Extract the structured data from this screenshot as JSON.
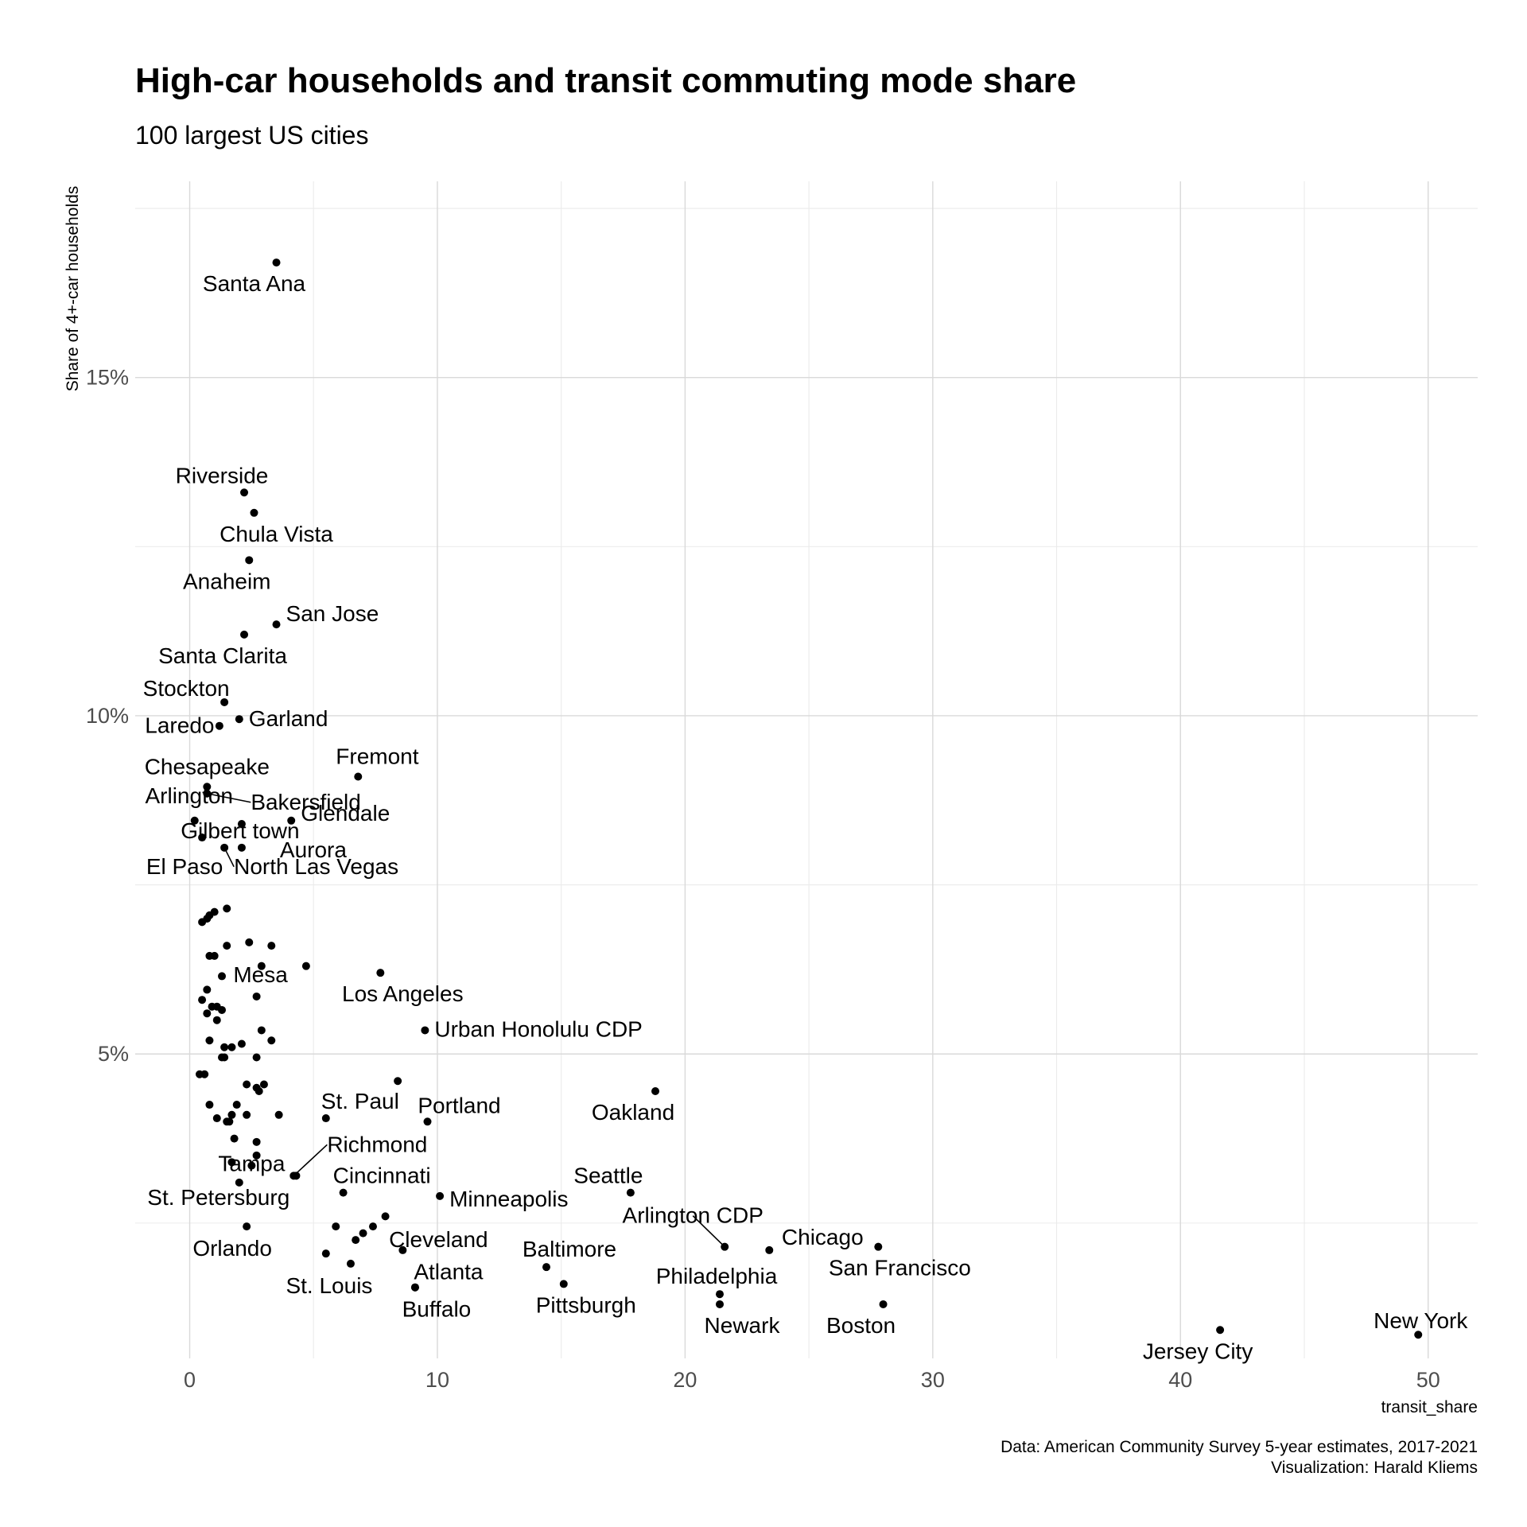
{
  "chart_data": {
    "type": "scatter",
    "title": "High-car households and transit commuting mode share",
    "subtitle": "100 largest US cities",
    "xlabel": "transit_share",
    "ylabel": "Share of 4+-car households",
    "xlim": [
      -2.2,
      52.0
    ],
    "ylim": [
      0.5,
      17.9
    ],
    "x_ticks": [
      0,
      10,
      20,
      30,
      40,
      50
    ],
    "x_tick_labels": [
      "0",
      "10",
      "20",
      "30",
      "40",
      "50"
    ],
    "y_ticks": [
      5,
      10,
      15
    ],
    "y_tick_labels": [
      "5%",
      "10%",
      "15%"
    ],
    "grid": true,
    "caption": [
      "Data: American Community Survey 5-year estimates, 2017-2021",
      "Visualization: Harald Kliems"
    ],
    "labeled_points": [
      {
        "label": "Santa Ana",
        "x": 3.5,
        "y": 16.7
      },
      {
        "label": "Riverside",
        "x": 2.2,
        "y": 13.3
      },
      {
        "label": "Chula Vista",
        "x": 2.6,
        "y": 13.0
      },
      {
        "label": "Anaheim",
        "x": 2.4,
        "y": 12.3
      },
      {
        "label": "San Jose",
        "x": 3.5,
        "y": 11.35
      },
      {
        "label": "Santa Clarita",
        "x": 2.2,
        "y": 11.2
      },
      {
        "label": "Stockton",
        "x": 1.4,
        "y": 10.2
      },
      {
        "label": "Laredo",
        "x": 1.2,
        "y": 9.85
      },
      {
        "label": "Garland",
        "x": 2.0,
        "y": 9.95
      },
      {
        "label": "Fremont",
        "x": 6.8,
        "y": 9.1
      },
      {
        "label": "Chesapeake",
        "x": 0.7,
        "y": 8.95
      },
      {
        "label": "Bakersfield",
        "x": 0.7,
        "y": 8.85
      },
      {
        "label": "Glendale",
        "x": 4.1,
        "y": 8.45
      },
      {
        "label": "Arlington",
        "x": 0.2,
        "y": 8.45
      },
      {
        "label": "Gilbert town",
        "x": 2.1,
        "y": 8.4
      },
      {
        "label": "Aurora",
        "x": 2.1,
        "y": 8.05
      },
      {
        "label": "El Paso",
        "x": 0.5,
        "y": 8.2
      },
      {
        "label": "North Las Vegas",
        "x": 1.4,
        "y": 8.05
      },
      {
        "label": "Mesa",
        "x": 2.7,
        "y": 5.85
      },
      {
        "label": "Los Angeles",
        "x": 7.7,
        "y": 6.2
      },
      {
        "label": "Urban Honolulu CDP",
        "x": 9.5,
        "y": 5.35
      },
      {
        "label": "Oakland",
        "x": 18.8,
        "y": 4.45
      },
      {
        "label": "St. Paul",
        "x": 5.5,
        "y": 4.05
      },
      {
        "label": "Portland",
        "x": 9.6,
        "y": 4.0
      },
      {
        "label": "Richmond",
        "x": 4.2,
        "y": 3.2
      },
      {
        "label": "Tampa",
        "x": 4.3,
        "y": 3.2
      },
      {
        "label": "Cincinnati",
        "x": 6.2,
        "y": 2.95
      },
      {
        "label": "Minneapolis",
        "x": 10.1,
        "y": 2.9
      },
      {
        "label": "St. Petersburg",
        "x": 2.0,
        "y": 3.1
      },
      {
        "label": "Seattle",
        "x": 17.8,
        "y": 2.95
      },
      {
        "label": "Arlington CDP",
        "x": 21.6,
        "y": 2.15
      },
      {
        "label": "Chicago",
        "x": 23.4,
        "y": 2.1
      },
      {
        "label": "San Francisco",
        "x": 27.8,
        "y": 2.15
      },
      {
        "label": "Orlando",
        "x": 2.3,
        "y": 2.45
      },
      {
        "label": "Cleveland",
        "x": 8.6,
        "y": 2.1
      },
      {
        "label": "Baltimore",
        "x": 14.4,
        "y": 1.85
      },
      {
        "label": "St. Louis",
        "x": 6.5,
        "y": 1.9
      },
      {
        "label": "Atlanta",
        "x": 9.1,
        "y": 1.55
      },
      {
        "label": "Buffalo",
        "x": 9.1,
        "y": 1.55
      },
      {
        "label": "Pittsburgh",
        "x": 15.1,
        "y": 1.6
      },
      {
        "label": "Philadelphia",
        "x": 21.4,
        "y": 1.45
      },
      {
        "label": "Newark",
        "x": 21.4,
        "y": 1.3
      },
      {
        "label": "Boston",
        "x": 28.0,
        "y": 1.3
      },
      {
        "label": "Jersey City",
        "x": 41.6,
        "y": 0.92
      },
      {
        "label": "New York",
        "x": 49.6,
        "y": 0.85
      }
    ],
    "other_points": [
      [
        0.7,
        7.0
      ],
      [
        1.0,
        7.1
      ],
      [
        0.5,
        6.95
      ],
      [
        0.8,
        7.05
      ],
      [
        1.5,
        7.15
      ],
      [
        1.5,
        6.6
      ],
      [
        2.4,
        6.65
      ],
      [
        3.3,
        6.6
      ],
      [
        0.8,
        6.45
      ],
      [
        1.0,
        6.45
      ],
      [
        2.9,
        6.3
      ],
      [
        4.7,
        6.3
      ],
      [
        1.3,
        6.15
      ],
      [
        0.7,
        5.95
      ],
      [
        0.5,
        5.8
      ],
      [
        0.9,
        5.7
      ],
      [
        1.1,
        5.7
      ],
      [
        1.3,
        5.65
      ],
      [
        0.7,
        5.6
      ],
      [
        1.1,
        5.5
      ],
      [
        2.9,
        5.35
      ],
      [
        0.8,
        5.2
      ],
      [
        3.3,
        5.2
      ],
      [
        2.1,
        5.15
      ],
      [
        1.4,
        5.1
      ],
      [
        1.7,
        5.1
      ],
      [
        1.3,
        4.95
      ],
      [
        1.4,
        4.95
      ],
      [
        2.7,
        4.95
      ],
      [
        0.4,
        4.7
      ],
      [
        0.6,
        4.7
      ],
      [
        2.3,
        4.55
      ],
      [
        2.7,
        4.5
      ],
      [
        3.0,
        4.55
      ],
      [
        2.8,
        4.45
      ],
      [
        0.8,
        4.25
      ],
      [
        1.9,
        4.25
      ],
      [
        1.7,
        4.1
      ],
      [
        3.6,
        4.1
      ],
      [
        2.3,
        4.1
      ],
      [
        1.1,
        4.05
      ],
      [
        1.5,
        4.0
      ],
      [
        1.6,
        4.0
      ],
      [
        8.4,
        4.6
      ],
      [
        1.8,
        3.75
      ],
      [
        2.7,
        3.7
      ],
      [
        2.7,
        3.5
      ],
      [
        1.7,
        3.4
      ],
      [
        2.5,
        3.35
      ],
      [
        5.9,
        2.45
      ],
      [
        7.9,
        2.6
      ],
      [
        7.4,
        2.45
      ],
      [
        7.0,
        2.35
      ],
      [
        6.7,
        2.25
      ],
      [
        5.5,
        2.05
      ]
    ]
  }
}
